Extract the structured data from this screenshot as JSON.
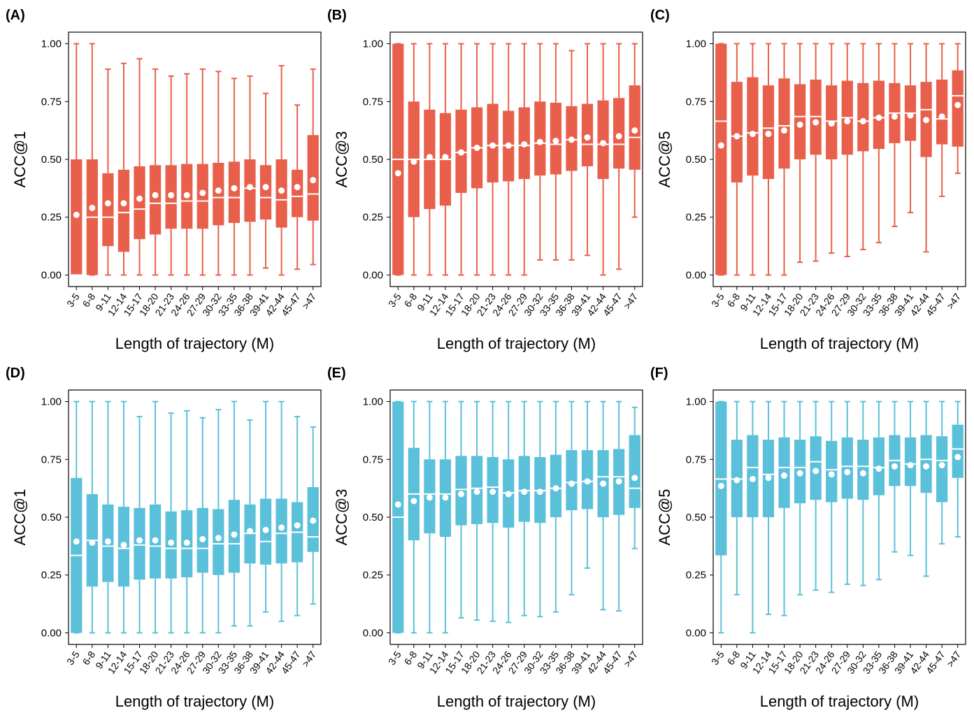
{
  "chart_data": [
    {
      "type": "box",
      "panel": "(A)",
      "ylabel": "ACC@1",
      "xlabel": "Length of trajectory (M)",
      "color": "#e8604c",
      "categories": [
        "3-5",
        "6-8",
        "9-11",
        "12-14",
        "15-17",
        "18-20",
        "21-23",
        "24-26",
        "27-29",
        "30-32",
        "33-35",
        "36-38",
        "39-41",
        "42-44",
        "45-47",
        ">47"
      ],
      "whisker_low": [
        0,
        0,
        0,
        0,
        0,
        0,
        0,
        0,
        0,
        0,
        0,
        0,
        0.03,
        0,
        0.025,
        0.045
      ],
      "q1": [
        0,
        0,
        0.125,
        0.1,
        0.155,
        0.175,
        0.2,
        0.2,
        0.2,
        0.215,
        0.225,
        0.23,
        0.24,
        0.205,
        0.25,
        0.235
      ],
      "median": [
        0,
        0.25,
        0.25,
        0.27,
        0.285,
        0.31,
        0.31,
        0.32,
        0.32,
        0.335,
        0.335,
        0.375,
        0.335,
        0.325,
        0.34,
        0.35
      ],
      "q3": [
        0.5,
        0.5,
        0.44,
        0.455,
        0.47,
        0.475,
        0.475,
        0.48,
        0.48,
        0.485,
        0.49,
        0.5,
        0.475,
        0.5,
        0.455,
        0.605
      ],
      "whisker_high": [
        1,
        1,
        0.89,
        0.915,
        0.935,
        0.89,
        0.86,
        0.87,
        0.89,
        0.88,
        0.85,
        0.86,
        0.785,
        0.905,
        0.735,
        0.89
      ],
      "mean": [
        0.26,
        0.29,
        0.31,
        0.31,
        0.33,
        0.345,
        0.345,
        0.345,
        0.355,
        0.365,
        0.375,
        0.38,
        0.38,
        0.365,
        0.38,
        0.41
      ],
      "ylim": [
        -0.05,
        1.05
      ],
      "yticks": [
        {
          "value": 0,
          "label": "0.00"
        },
        {
          "value": 0.25,
          "label": "0.25"
        },
        {
          "value": 0.5,
          "label": "0.50"
        },
        {
          "value": 0.75,
          "label": "0.75"
        },
        {
          "value": 1,
          "label": "1.00"
        }
      ]
    },
    {
      "type": "box",
      "panel": "(B)",
      "ylabel": "ACC@3",
      "xlabel": "Length of trajectory (M)",
      "color": "#e8604c",
      "categories": [
        "3-5",
        "6-8",
        "9-11",
        "12-14",
        "15-17",
        "18-20",
        "21-23",
        "24-26",
        "27-29",
        "30-32",
        "33-35",
        "36-38",
        "39-41",
        "42-44",
        "45-47",
        ">47"
      ],
      "whisker_low": [
        0,
        0,
        0,
        0,
        0,
        0,
        0,
        0,
        0,
        0.065,
        0.065,
        0.065,
        0.085,
        0,
        0.025,
        0.25
      ],
      "q1": [
        0,
        0.25,
        0.285,
        0.3,
        0.355,
        0.375,
        0.4,
        0.405,
        0.415,
        0.43,
        0.435,
        0.45,
        0.47,
        0.415,
        0.46,
        0.455
      ],
      "median": [
        0.5,
        0.5,
        0.5,
        0.5,
        0.53,
        0.55,
        0.56,
        0.56,
        0.56,
        0.57,
        0.565,
        0.585,
        0.565,
        0.565,
        0.565,
        0.595
      ],
      "q3": [
        1,
        0.75,
        0.715,
        0.7,
        0.715,
        0.725,
        0.74,
        0.71,
        0.725,
        0.75,
        0.745,
        0.73,
        0.74,
        0.755,
        0.765,
        0.82
      ],
      "whisker_high": [
        1,
        1,
        1,
        1,
        1,
        1,
        1,
        1,
        1,
        1,
        1,
        0.97,
        1,
        1,
        1,
        1
      ],
      "mean": [
        0.44,
        0.49,
        0.51,
        0.51,
        0.53,
        0.55,
        0.56,
        0.56,
        0.565,
        0.575,
        0.58,
        0.585,
        0.595,
        0.57,
        0.6,
        0.625
      ],
      "ylim": [
        -0.05,
        1.05
      ],
      "yticks": [
        {
          "value": 0,
          "label": "0.00"
        },
        {
          "value": 0.25,
          "label": "0.25"
        },
        {
          "value": 0.5,
          "label": "0.50"
        },
        {
          "value": 0.75,
          "label": "0.75"
        },
        {
          "value": 1,
          "label": "1.00"
        }
      ]
    },
    {
      "type": "box",
      "panel": "(C)",
      "ylabel": "ACC@5",
      "xlabel": "Length of trajectory (M)",
      "color": "#e8604c",
      "categories": [
        "3-5",
        "6-8",
        "9-11",
        "12-14",
        "15-17",
        "18-20",
        "21-23",
        "24-26",
        "27-29",
        "30-32",
        "33-35",
        "36-38",
        "39-41",
        "42-44",
        "45-47",
        ">47"
      ],
      "whisker_low": [
        0,
        0,
        0,
        0,
        0,
        0.055,
        0.06,
        0.095,
        0.08,
        0.11,
        0.14,
        0.21,
        0.27,
        0.1,
        0.34,
        0.44
      ],
      "q1": [
        0,
        0.4,
        0.43,
        0.415,
        0.46,
        0.5,
        0.52,
        0.5,
        0.52,
        0.535,
        0.545,
        0.57,
        0.58,
        0.51,
        0.565,
        0.555
      ],
      "median": [
        0.665,
        0.6,
        0.615,
        0.635,
        0.645,
        0.685,
        0.685,
        0.665,
        0.68,
        0.665,
        0.68,
        0.7,
        0.7,
        0.715,
        0.675,
        0.775
      ],
      "q3": [
        1,
        0.835,
        0.855,
        0.82,
        0.85,
        0.825,
        0.845,
        0.82,
        0.84,
        0.83,
        0.84,
        0.83,
        0.82,
        0.835,
        0.845,
        0.885
      ],
      "whisker_high": [
        1,
        1,
        1,
        1,
        1,
        1,
        1,
        1,
        1,
        1,
        1,
        1,
        1,
        1,
        1,
        1
      ],
      "mean": [
        0.56,
        0.6,
        0.61,
        0.61,
        0.625,
        0.65,
        0.66,
        0.655,
        0.665,
        0.665,
        0.68,
        0.685,
        0.69,
        0.67,
        0.685,
        0.735
      ],
      "ylim": [
        -0.05,
        1.05
      ],
      "yticks": [
        {
          "value": 0,
          "label": "0.00"
        },
        {
          "value": 0.25,
          "label": "0.25"
        },
        {
          "value": 0.5,
          "label": "0.50"
        },
        {
          "value": 0.75,
          "label": "0.75"
        },
        {
          "value": 1,
          "label": "1.00"
        }
      ]
    },
    {
      "type": "box",
      "panel": "(D)",
      "ylabel": "ACC@1",
      "xlabel": "Length of trajectory (M)",
      "color": "#5bc0d9",
      "categories": [
        "3-5",
        "6-8",
        "9-11",
        "12-14",
        "15-17",
        "18-20",
        "21-23",
        "24-26",
        "27-29",
        "30-32",
        "33-35",
        "36-38",
        "39-41",
        "42-44",
        "45-47",
        ">47"
      ],
      "whisker_low": [
        0,
        0,
        0,
        0,
        0,
        0,
        0,
        0,
        0,
        0,
        0.03,
        0.03,
        0.09,
        0.05,
        0.075,
        0.125
      ],
      "q1": [
        0,
        0.2,
        0.22,
        0.2,
        0.23,
        0.235,
        0.235,
        0.24,
        0.26,
        0.25,
        0.26,
        0.3,
        0.295,
        0.3,
        0.305,
        0.35
      ],
      "median": [
        0.335,
        0.4,
        0.375,
        0.365,
        0.38,
        0.375,
        0.365,
        0.365,
        0.365,
        0.385,
        0.385,
        0.43,
        0.395,
        0.43,
        0.435,
        0.415
      ],
      "q3": [
        0.67,
        0.6,
        0.555,
        0.545,
        0.54,
        0.555,
        0.525,
        0.53,
        0.54,
        0.535,
        0.575,
        0.555,
        0.58,
        0.58,
        0.565,
        0.63
      ],
      "whisker_high": [
        1,
        1,
        1,
        1,
        0.935,
        1,
        0.95,
        0.96,
        0.93,
        0.965,
        1,
        0.92,
        1,
        1,
        0.935,
        0.89
      ],
      "mean": [
        0.395,
        0.39,
        0.395,
        0.38,
        0.4,
        0.4,
        0.39,
        0.39,
        0.405,
        0.41,
        0.425,
        0.44,
        0.445,
        0.455,
        0.465,
        0.485
      ],
      "ylim": [
        -0.05,
        1.05
      ],
      "yticks": [
        {
          "value": 0,
          "label": "0.00"
        },
        {
          "value": 0.25,
          "label": "0.25"
        },
        {
          "value": 0.5,
          "label": "0.50"
        },
        {
          "value": 0.75,
          "label": "0.75"
        },
        {
          "value": 1,
          "label": "1.00"
        }
      ]
    },
    {
      "type": "box",
      "panel": "(E)",
      "ylabel": "ACC@3",
      "xlabel": "Length of trajectory (M)",
      "color": "#5bc0d9",
      "categories": [
        "3-5",
        "6-8",
        "9-11",
        "12-14",
        "15-17",
        "18-20",
        "21-23",
        "24-26",
        "27-29",
        "30-32",
        "33-35",
        "36-38",
        "39-41",
        "42-44",
        "45-47",
        ">47"
      ],
      "whisker_low": [
        0,
        0,
        0,
        0,
        0.065,
        0.055,
        0.05,
        0.045,
        0.075,
        0.07,
        0.09,
        0.165,
        0.28,
        0.1,
        0.095,
        0.365
      ],
      "q1": [
        0,
        0.4,
        0.43,
        0.415,
        0.465,
        0.47,
        0.475,
        0.455,
        0.48,
        0.475,
        0.5,
        0.53,
        0.535,
        0.5,
        0.51,
        0.54
      ],
      "median": [
        0.5,
        0.6,
        0.6,
        0.6,
        0.62,
        0.625,
        0.63,
        0.605,
        0.615,
        0.615,
        0.625,
        0.65,
        0.655,
        0.675,
        0.675,
        0.625
      ],
      "q3": [
        1,
        0.8,
        0.75,
        0.75,
        0.765,
        0.765,
        0.76,
        0.75,
        0.765,
        0.76,
        0.77,
        0.79,
        0.79,
        0.79,
        0.795,
        0.855
      ],
      "whisker_high": [
        1,
        1,
        1,
        1,
        1,
        1,
        1,
        1,
        1,
        1,
        1,
        1,
        1,
        1,
        1,
        0.975
      ],
      "mean": [
        0.555,
        0.57,
        0.585,
        0.585,
        0.6,
        0.61,
        0.61,
        0.6,
        0.61,
        0.61,
        0.625,
        0.645,
        0.655,
        0.645,
        0.655,
        0.67
      ],
      "ylim": [
        -0.05,
        1.05
      ],
      "yticks": [
        {
          "value": 0,
          "label": "0.00"
        },
        {
          "value": 0.25,
          "label": "0.25"
        },
        {
          "value": 0.5,
          "label": "0.50"
        },
        {
          "value": 0.75,
          "label": "0.75"
        },
        {
          "value": 1,
          "label": "1.00"
        }
      ]
    },
    {
      "type": "box",
      "panel": "(F)",
      "ylabel": "ACC@5",
      "xlabel": "Length of trajectory (M)",
      "color": "#5bc0d9",
      "categories": [
        "3-5",
        "6-8",
        "9-11",
        "12-14",
        "15-17",
        "18-20",
        "21-23",
        "24-26",
        "27-29",
        "30-32",
        "33-35",
        "36-38",
        "39-41",
        "42-44",
        "45-47",
        ">47"
      ],
      "whisker_low": [
        0,
        0.165,
        0,
        0.08,
        0.075,
        0.165,
        0.185,
        0.175,
        0.21,
        0.205,
        0.23,
        0.35,
        0.335,
        0.245,
        0.385,
        0.415
      ],
      "q1": [
        0.335,
        0.5,
        0.5,
        0.5,
        0.54,
        0.56,
        0.575,
        0.565,
        0.58,
        0.575,
        0.595,
        0.635,
        0.635,
        0.605,
        0.565,
        0.67
      ],
      "median": [
        0.665,
        0.665,
        0.715,
        0.685,
        0.715,
        0.715,
        0.74,
        0.705,
        0.72,
        0.72,
        0.715,
        0.745,
        0.73,
        0.75,
        0.745,
        0.795
      ],
      "q3": [
        1,
        0.835,
        0.855,
        0.835,
        0.845,
        0.835,
        0.85,
        0.83,
        0.845,
        0.835,
        0.845,
        0.855,
        0.845,
        0.855,
        0.85,
        0.9
      ],
      "whisker_high": [
        1,
        1,
        1,
        1,
        1,
        1,
        1,
        1,
        1,
        1,
        1,
        1,
        1,
        1,
        1,
        1
      ],
      "mean": [
        0.635,
        0.66,
        0.665,
        0.67,
        0.68,
        0.69,
        0.7,
        0.685,
        0.695,
        0.69,
        0.71,
        0.72,
        0.725,
        0.72,
        0.725,
        0.76
      ],
      "ylim": [
        -0.05,
        1.05
      ],
      "yticks": [
        {
          "value": 0,
          "label": "0.00"
        },
        {
          "value": 0.25,
          "label": "0.25"
        },
        {
          "value": 0.5,
          "label": "0.50"
        },
        {
          "value": 0.75,
          "label": "0.75"
        },
        {
          "value": 1,
          "label": "1.00"
        }
      ]
    }
  ]
}
